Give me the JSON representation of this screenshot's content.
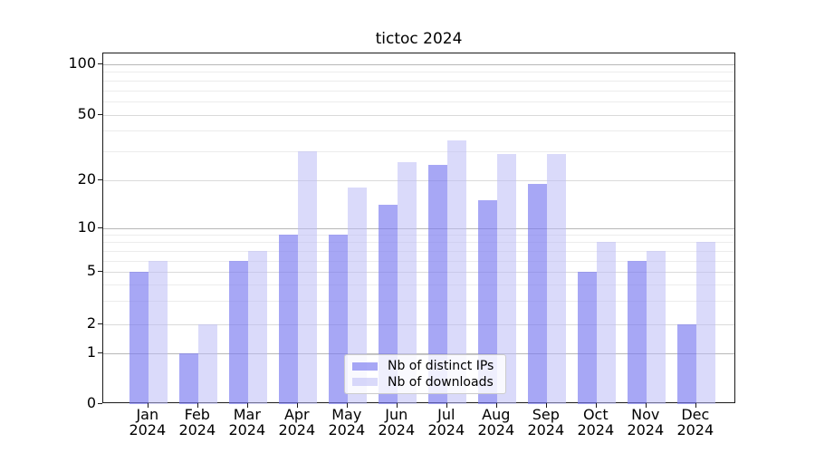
{
  "chart_data": {
    "type": "bar",
    "title": "tictoc 2024",
    "x_months": [
      "Jan",
      "Feb",
      "Mar",
      "Apr",
      "May",
      "Jun",
      "Jul",
      "Aug",
      "Sep",
      "Oct",
      "Nov",
      "Dec"
    ],
    "x_year": "2024",
    "series": [
      {
        "name": "Nb of distinct IPs",
        "key": "distinct-ips",
        "color_hex": "#7979f0",
        "alpha": 0.66,
        "css_color": "rgba(121,121,240,0.66)",
        "values": [
          5,
          1,
          6,
          9,
          9,
          14,
          25,
          15,
          19,
          5,
          6,
          2
        ]
      },
      {
        "name": "Nb of downloads",
        "key": "downloads",
        "color_hex": "#bbbbf5",
        "alpha": 0.55,
        "css_color": "rgba(187,187,245,0.55)",
        "values": [
          6,
          2,
          7,
          30,
          18,
          26,
          35,
          29,
          29,
          8,
          7,
          8
        ]
      }
    ],
    "y_axis": {
      "scale": "log above 1, linear 0-1",
      "tick_labels": [
        "0",
        "1",
        "2",
        "5",
        "10",
        "20",
        "50",
        "100"
      ],
      "tick_values": [
        0,
        1,
        2,
        5,
        10,
        20,
        50,
        100
      ],
      "major_gridlines": [
        1,
        10,
        100
      ],
      "labeled_gridlines": [
        2,
        5,
        20,
        50
      ],
      "minor_gridlines": [
        3,
        4,
        6,
        7,
        8,
        9,
        30,
        40,
        60,
        70,
        80,
        90
      ]
    },
    "legend": {
      "position": "lower-center",
      "entries": [
        "Nb of distinct IPs",
        "Nb of downloads"
      ]
    },
    "grid": true
  },
  "colors": {
    "background": "#ffffff",
    "spine": "#1a1a1a",
    "grid_major": "#b8b8b8",
    "grid_labeled": "#dadada",
    "grid_minor": "#ececec",
    "text": "#000000"
  }
}
